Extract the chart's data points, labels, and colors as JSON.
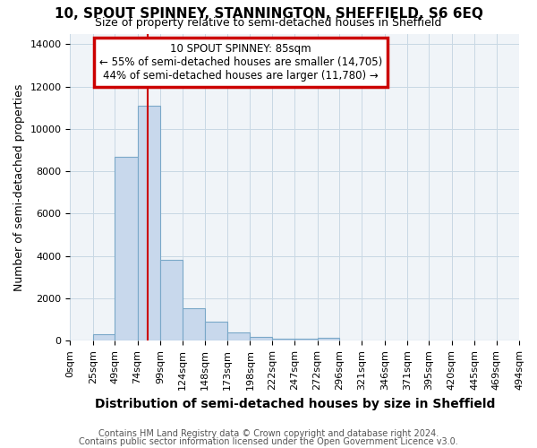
{
  "title": "10, SPOUT SPINNEY, STANNINGTON, SHEFFIELD, S6 6EQ",
  "subtitle": "Size of property relative to semi-detached houses in Sheffield",
  "xlabel": "Distribution of semi-detached houses by size in Sheffield",
  "ylabel": "Number of semi-detached properties",
  "property_size": 85,
  "annotation_line1": "10 SPOUT SPINNEY: 85sqm",
  "annotation_line2": "← 55% of semi-detached houses are smaller (14,705)",
  "annotation_line3": "44% of semi-detached houses are larger (11,780) →",
  "bar_color": "#c8d8ec",
  "bar_edge_color": "#7aa8c8",
  "vline_color": "#cc0000",
  "annotation_box_edgecolor": "#cc0000",
  "grid_color": "#c8d8e4",
  "bin_edges": [
    0,
    25,
    49,
    74,
    99,
    124,
    148,
    173,
    198,
    222,
    247,
    272,
    296,
    321,
    346,
    371,
    395,
    420,
    445,
    469,
    494
  ],
  "bin_labels": [
    "0sqm",
    "25sqm",
    "49sqm",
    "74sqm",
    "99sqm",
    "124sqm",
    "148sqm",
    "173sqm",
    "198sqm",
    "222sqm",
    "247sqm",
    "272sqm",
    "296sqm",
    "321sqm",
    "346sqm",
    "371sqm",
    "395sqm",
    "420sqm",
    "445sqm",
    "469sqm",
    "494sqm"
  ],
  "counts": [
    0,
    300,
    8700,
    11100,
    3800,
    1550,
    900,
    375,
    200,
    100,
    100,
    150,
    0,
    0,
    0,
    0,
    0,
    0,
    0,
    0
  ],
  "ylim": [
    0,
    14500
  ],
  "title_fontsize": 11,
  "subtitle_fontsize": 9,
  "ylabel_fontsize": 9,
  "xlabel_fontsize": 10,
  "tick_fontsize": 8,
  "annot_fontsize": 8.5,
  "footnote1": "Contains HM Land Registry data © Crown copyright and database right 2024.",
  "footnote2": "Contains public sector information licensed under the Open Government Licence v3.0.",
  "footnote_fontsize": 7,
  "footnote_color": "#555555"
}
